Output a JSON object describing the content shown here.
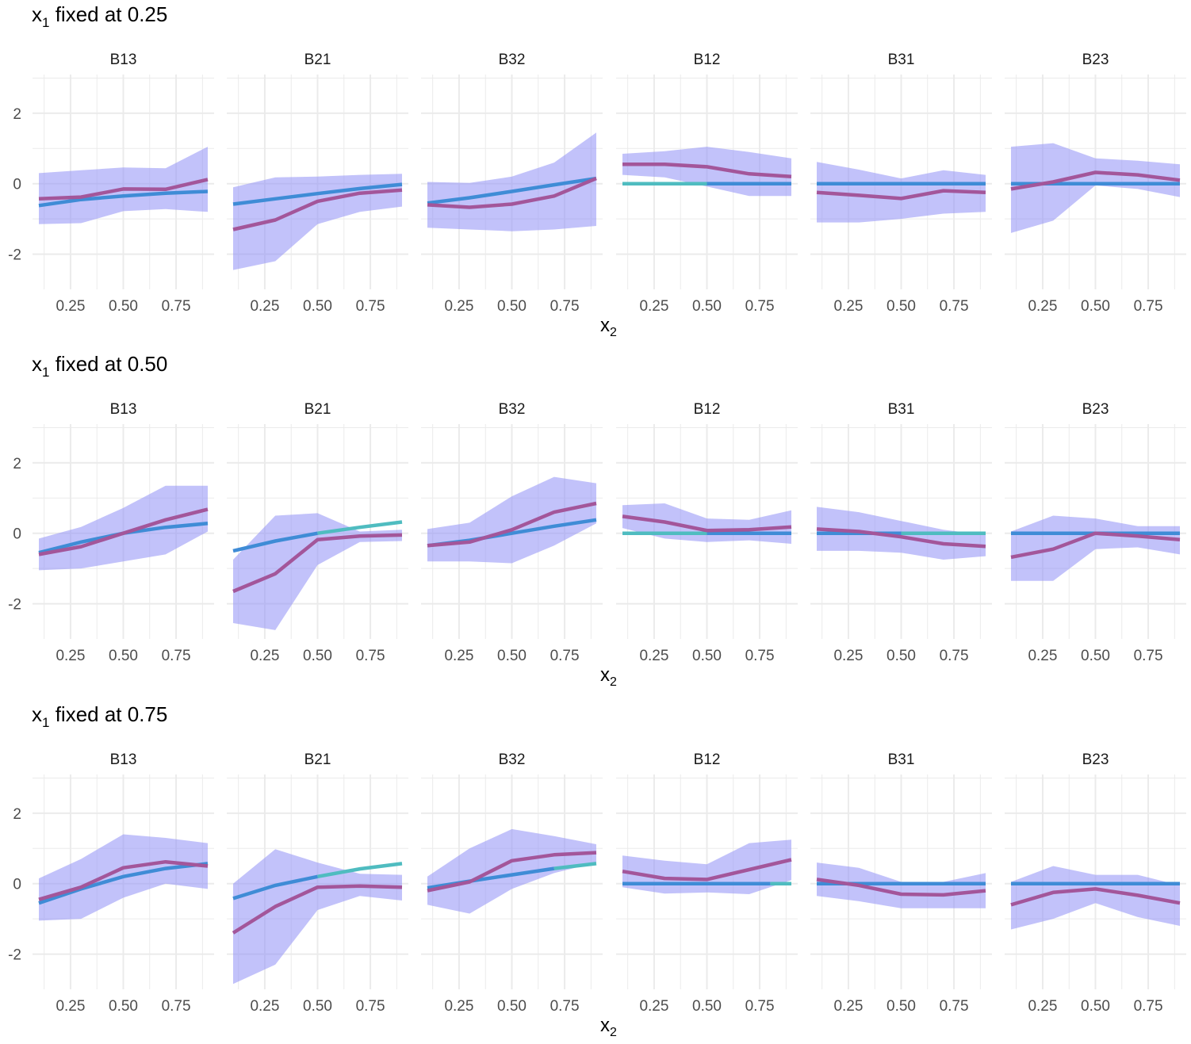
{
  "colors": {
    "band": "#8f8ff5",
    "estimate": "#a3569a",
    "truth_teal": "#4fbcc0",
    "truth_blue": "#3f8cd6",
    "grid": "#ebebeb",
    "text": "#333333",
    "axis_text": "#4d4d4d"
  },
  "chart_data": [
    {
      "type": "line",
      "title_main": "x",
      "title_sub": "1",
      "title_rest": " fixed at 0.25",
      "xlabel_main": "x",
      "xlabel_sub": "2",
      "xlim": [
        0.07,
        0.93
      ],
      "ylim": [
        -3.0,
        3.1
      ],
      "x_ticks": [
        0.25,
        0.5,
        0.75
      ],
      "x_tick_labels": [
        "0.25",
        "0.50",
        "0.75"
      ],
      "y_ticks": [
        -2,
        0,
        2
      ],
      "y_tick_labels": [
        "-2",
        "0",
        "2"
      ],
      "x": [
        0.1,
        0.3,
        0.5,
        0.7,
        0.9
      ],
      "panels": [
        {
          "name": "B13",
          "lower": [
            -1.15,
            -1.12,
            -0.78,
            -0.72,
            -0.8
          ],
          "upper": [
            0.3,
            0.38,
            0.46,
            0.44,
            1.05
          ],
          "estimate": [
            -0.43,
            -0.38,
            -0.15,
            -0.16,
            0.12
          ],
          "truth_x": [
            0.1,
            0.3,
            0.5,
            0.7,
            0.9
          ],
          "truth": [
            -0.62,
            -0.45,
            -0.35,
            -0.27,
            -0.22
          ],
          "truth_segments": [
            {
              "x0": 0.1,
              "x1": 0.9,
              "color": "blue"
            }
          ]
        },
        {
          "name": "B21",
          "lower": [
            -2.45,
            -2.2,
            -1.15,
            -0.8,
            -0.65
          ],
          "upper": [
            -0.1,
            0.18,
            0.2,
            0.25,
            0.28
          ],
          "estimate": [
            -1.3,
            -1.03,
            -0.5,
            -0.27,
            -0.18
          ],
          "truth_x": [
            0.1,
            0.3,
            0.5,
            0.7,
            0.9
          ],
          "truth": [
            -0.58,
            -0.43,
            -0.28,
            -0.14,
            -0.02
          ],
          "truth_segments": [
            {
              "x0": 0.1,
              "x1": 0.9,
              "color": "blue"
            }
          ]
        },
        {
          "name": "B32",
          "lower": [
            -1.25,
            -1.3,
            -1.35,
            -1.3,
            -1.2
          ],
          "upper": [
            0.05,
            0.02,
            0.2,
            0.6,
            1.45
          ],
          "estimate": [
            -0.6,
            -0.67,
            -0.58,
            -0.35,
            0.15
          ],
          "truth_x": [
            0.1,
            0.3,
            0.5,
            0.7,
            0.9
          ],
          "truth": [
            -0.55,
            -0.4,
            -0.22,
            -0.03,
            0.15
          ],
          "truth_segments": [
            {
              "x0": 0.1,
              "x1": 0.9,
              "color": "blue"
            }
          ]
        },
        {
          "name": "B12",
          "lower": [
            0.25,
            0.18,
            -0.08,
            -0.35,
            -0.35
          ],
          "upper": [
            0.85,
            0.92,
            1.05,
            0.9,
            0.72
          ],
          "estimate": [
            0.55,
            0.55,
            0.48,
            0.28,
            0.2
          ],
          "truth_x": [
            0.1,
            0.3,
            0.5,
            0.7,
            0.9
          ],
          "truth": [
            0,
            0,
            0,
            0,
            0
          ],
          "truth_segments": [
            {
              "x0": 0.1,
              "x1": 0.5,
              "color": "teal"
            },
            {
              "x0": 0.5,
              "x1": 0.9,
              "color": "blue"
            }
          ]
        },
        {
          "name": "B31",
          "lower": [
            -1.1,
            -1.1,
            -1.0,
            -0.85,
            -0.8
          ],
          "upper": [
            0.62,
            0.4,
            0.15,
            0.38,
            0.25
          ],
          "estimate": [
            -0.25,
            -0.33,
            -0.42,
            -0.2,
            -0.25
          ],
          "truth_x": [
            0.1,
            0.3,
            0.5,
            0.7,
            0.9
          ],
          "truth": [
            0,
            0,
            0,
            0,
            0
          ],
          "truth_segments": [
            {
              "x0": 0.1,
              "x1": 0.9,
              "color": "blue"
            }
          ]
        },
        {
          "name": "B23",
          "lower": [
            -1.4,
            -1.05,
            -0.05,
            -0.15,
            -0.38
          ],
          "upper": [
            1.05,
            1.15,
            0.72,
            0.65,
            0.55
          ],
          "estimate": [
            -0.15,
            0.05,
            0.32,
            0.25,
            0.1
          ],
          "truth_x": [
            0.1,
            0.3,
            0.5,
            0.7,
            0.9
          ],
          "truth": [
            0,
            0,
            0,
            0,
            0
          ],
          "truth_segments": [
            {
              "x0": 0.1,
              "x1": 0.9,
              "color": "blue"
            }
          ]
        }
      ]
    },
    {
      "type": "line",
      "title_main": "x",
      "title_sub": "1",
      "title_rest": " fixed at 0.50",
      "xlabel_main": "x",
      "xlabel_sub": "2",
      "xlim": [
        0.07,
        0.93
      ],
      "ylim": [
        -3.0,
        3.1
      ],
      "x_ticks": [
        0.25,
        0.5,
        0.75
      ],
      "x_tick_labels": [
        "0.25",
        "0.50",
        "0.75"
      ],
      "y_ticks": [
        -2,
        0,
        2
      ],
      "y_tick_labels": [
        "-2",
        "0",
        "2"
      ],
      "x": [
        0.1,
        0.3,
        0.5,
        0.7,
        0.9
      ],
      "panels": [
        {
          "name": "B13",
          "lower": [
            -1.05,
            -1.0,
            -0.8,
            -0.6,
            0.05
          ],
          "upper": [
            -0.15,
            0.18,
            0.72,
            1.35,
            1.35
          ],
          "estimate": [
            -0.6,
            -0.38,
            0.0,
            0.38,
            0.68
          ],
          "truth_x": [
            0.1,
            0.3,
            0.5,
            0.7,
            0.9
          ],
          "truth": [
            -0.55,
            -0.25,
            0.0,
            0.17,
            0.28
          ],
          "truth_segments": [
            {
              "x0": 0.1,
              "x1": 0.9,
              "color": "blue"
            }
          ]
        },
        {
          "name": "B21",
          "lower": [
            -2.55,
            -2.75,
            -0.9,
            -0.25,
            -0.22
          ],
          "upper": [
            -0.75,
            0.5,
            0.57,
            0.05,
            0.1
          ],
          "estimate": [
            -1.65,
            -1.15,
            -0.18,
            -0.08,
            -0.05
          ],
          "truth_x": [
            0.1,
            0.3,
            0.5,
            0.7,
            0.9
          ],
          "truth": [
            -0.5,
            -0.22,
            0.0,
            0.17,
            0.32
          ],
          "truth_segments": [
            {
              "x0": 0.1,
              "x1": 0.5,
              "color": "blue"
            },
            {
              "x0": 0.5,
              "x1": 0.9,
              "color": "teal"
            }
          ]
        },
        {
          "name": "B32",
          "lower": [
            -0.8,
            -0.8,
            -0.85,
            -0.35,
            0.28
          ],
          "upper": [
            0.12,
            0.3,
            1.05,
            1.6,
            1.42
          ],
          "estimate": [
            -0.35,
            -0.25,
            0.1,
            0.6,
            0.85
          ],
          "truth_x": [
            0.1,
            0.3,
            0.5,
            0.7,
            0.9
          ],
          "truth": [
            -0.35,
            -0.2,
            0.0,
            0.2,
            0.38
          ],
          "truth_segments": [
            {
              "x0": 0.1,
              "x1": 0.9,
              "color": "blue"
            }
          ]
        },
        {
          "name": "B12",
          "lower": [
            0.15,
            -0.15,
            -0.25,
            -0.2,
            -0.3
          ],
          "upper": [
            0.8,
            0.85,
            0.42,
            0.38,
            0.65
          ],
          "estimate": [
            0.48,
            0.32,
            0.08,
            0.1,
            0.18
          ],
          "truth_x": [
            0.1,
            0.3,
            0.5,
            0.7,
            0.9
          ],
          "truth": [
            0,
            0,
            0,
            0,
            0
          ],
          "truth_segments": [
            {
              "x0": 0.1,
              "x1": 0.5,
              "color": "teal"
            },
            {
              "x0": 0.5,
              "x1": 0.9,
              "color": "blue"
            }
          ]
        },
        {
          "name": "B31",
          "lower": [
            -0.5,
            -0.5,
            -0.55,
            -0.75,
            -0.65
          ],
          "upper": [
            0.75,
            0.6,
            0.35,
            0.1,
            -0.05
          ],
          "estimate": [
            0.12,
            0.05,
            -0.1,
            -0.3,
            -0.37
          ],
          "truth_x": [
            0.1,
            0.3,
            0.5,
            0.7,
            0.9
          ],
          "truth": [
            0,
            0,
            0,
            0,
            0
          ],
          "truth_segments": [
            {
              "x0": 0.1,
              "x1": 0.5,
              "color": "blue"
            },
            {
              "x0": 0.5,
              "x1": 0.9,
              "color": "teal"
            }
          ]
        },
        {
          "name": "B23",
          "lower": [
            -1.35,
            -1.35,
            -0.45,
            -0.4,
            -0.6
          ],
          "upper": [
            0.05,
            0.5,
            0.42,
            0.2,
            0.2
          ],
          "estimate": [
            -0.68,
            -0.45,
            0.0,
            -0.08,
            -0.18
          ],
          "truth_x": [
            0.1,
            0.3,
            0.5,
            0.7,
            0.9
          ],
          "truth": [
            0,
            0,
            0,
            0,
            0
          ],
          "truth_segments": [
            {
              "x0": 0.1,
              "x1": 0.9,
              "color": "blue"
            }
          ]
        }
      ]
    },
    {
      "type": "line",
      "title_main": "x",
      "title_sub": "1",
      "title_rest": " fixed at 0.75",
      "xlabel_main": "x",
      "xlabel_sub": "2",
      "xlim": [
        0.07,
        0.93
      ],
      "ylim": [
        -3.0,
        3.1
      ],
      "x_ticks": [
        0.25,
        0.5,
        0.75
      ],
      "x_tick_labels": [
        "0.25",
        "0.50",
        "0.75"
      ],
      "y_ticks": [
        -2,
        0,
        2
      ],
      "y_tick_labels": [
        "-2",
        "0",
        "2"
      ],
      "x": [
        0.1,
        0.3,
        0.5,
        0.7,
        0.9
      ],
      "panels": [
        {
          "name": "B13",
          "lower": [
            -1.05,
            -1.0,
            -0.4,
            0.0,
            -0.15
          ],
          "upper": [
            0.15,
            0.7,
            1.4,
            1.3,
            1.15
          ],
          "estimate": [
            -0.45,
            -0.1,
            0.45,
            0.62,
            0.5
          ],
          "truth_x": [
            0.1,
            0.3,
            0.5,
            0.7,
            0.9
          ],
          "truth": [
            -0.55,
            -0.15,
            0.2,
            0.43,
            0.57
          ],
          "truth_segments": [
            {
              "x0": 0.1,
              "x1": 0.9,
              "color": "blue"
            }
          ]
        },
        {
          "name": "B21",
          "lower": [
            -2.85,
            -2.3,
            -0.75,
            -0.35,
            -0.48
          ],
          "upper": [
            0.0,
            0.98,
            0.6,
            0.28,
            0.25
          ],
          "estimate": [
            -1.4,
            -0.65,
            -0.1,
            -0.07,
            -0.1
          ],
          "truth_x": [
            0.1,
            0.3,
            0.5,
            0.7,
            0.9
          ],
          "truth": [
            -0.42,
            -0.05,
            0.2,
            0.42,
            0.57
          ],
          "truth_segments": [
            {
              "x0": 0.1,
              "x1": 0.5,
              "color": "blue"
            },
            {
              "x0": 0.5,
              "x1": 0.9,
              "color": "teal"
            }
          ]
        },
        {
          "name": "B32",
          "lower": [
            -0.6,
            -0.85,
            -0.15,
            0.3,
            0.6
          ],
          "upper": [
            0.2,
            1.0,
            1.55,
            1.35,
            1.12
          ],
          "estimate": [
            -0.2,
            0.05,
            0.65,
            0.82,
            0.88
          ],
          "truth_x": [
            0.1,
            0.3,
            0.5,
            0.7,
            0.9
          ],
          "truth": [
            -0.12,
            0.07,
            0.25,
            0.43,
            0.57
          ],
          "truth_segments": [
            {
              "x0": 0.1,
              "x1": 0.7,
              "color": "blue"
            },
            {
              "x0": 0.7,
              "x1": 0.9,
              "color": "teal"
            }
          ]
        },
        {
          "name": "B12",
          "lower": [
            -0.1,
            -0.28,
            -0.25,
            -0.3,
            0.1
          ],
          "upper": [
            0.8,
            0.65,
            0.55,
            1.15,
            1.25
          ],
          "estimate": [
            0.35,
            0.15,
            0.12,
            0.4,
            0.68
          ],
          "truth_x": [
            0.1,
            0.3,
            0.5,
            0.7,
            0.9
          ],
          "truth": [
            0,
            0,
            0,
            0,
            0
          ],
          "truth_segments": [
            {
              "x0": 0.1,
              "x1": 0.8,
              "color": "blue"
            },
            {
              "x0": 0.8,
              "x1": 0.9,
              "color": "teal"
            }
          ]
        },
        {
          "name": "B31",
          "lower": [
            -0.35,
            -0.5,
            -0.7,
            -0.7,
            -0.7
          ],
          "upper": [
            0.6,
            0.45,
            0.05,
            0.05,
            0.3
          ],
          "estimate": [
            0.12,
            -0.05,
            -0.3,
            -0.32,
            -0.2
          ],
          "truth_x": [
            0.1,
            0.3,
            0.5,
            0.7,
            0.9
          ],
          "truth": [
            0,
            0,
            0,
            0,
            0
          ],
          "truth_segments": [
            {
              "x0": 0.1,
              "x1": 0.9,
              "color": "blue"
            }
          ]
        },
        {
          "name": "B23",
          "lower": [
            -1.3,
            -1.0,
            -0.55,
            -0.95,
            -1.2
          ],
          "upper": [
            0.05,
            0.5,
            0.25,
            0.25,
            -0.05
          ],
          "estimate": [
            -0.6,
            -0.25,
            -0.15,
            -0.33,
            -0.55
          ],
          "truth_x": [
            0.1,
            0.3,
            0.5,
            0.7,
            0.9
          ],
          "truth": [
            0,
            0,
            0,
            0,
            0
          ],
          "truth_segments": [
            {
              "x0": 0.1,
              "x1": 0.9,
              "color": "blue"
            }
          ]
        }
      ]
    }
  ]
}
